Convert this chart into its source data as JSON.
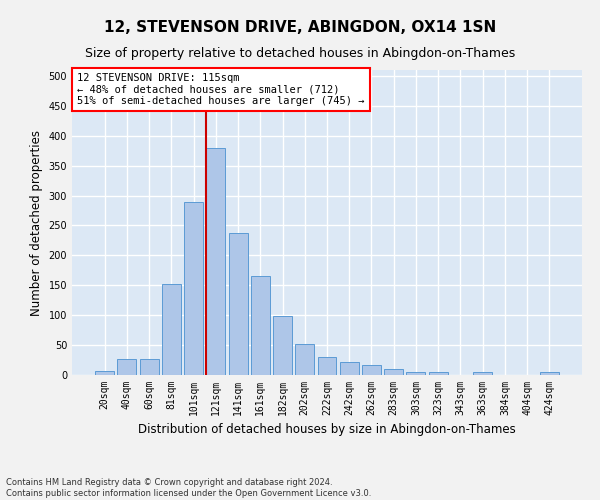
{
  "title": "12, STEVENSON DRIVE, ABINGDON, OX14 1SN",
  "subtitle": "Size of property relative to detached houses in Abingdon-on-Thames",
  "xlabel": "Distribution of detached houses by size in Abingdon-on-Thames",
  "ylabel": "Number of detached properties",
  "bar_labels": [
    "20sqm",
    "40sqm",
    "60sqm",
    "81sqm",
    "101sqm",
    "121sqm",
    "141sqm",
    "161sqm",
    "182sqm",
    "202sqm",
    "222sqm",
    "242sqm",
    "262sqm",
    "283sqm",
    "303sqm",
    "323sqm",
    "343sqm",
    "363sqm",
    "384sqm",
    "404sqm",
    "424sqm"
  ],
  "bar_values": [
    7,
    27,
    27,
    153,
    290,
    380,
    237,
    165,
    98,
    52,
    30,
    22,
    17,
    10,
    5,
    5,
    0,
    5,
    0,
    0,
    5
  ],
  "bar_color": "#aec6e8",
  "bar_edge_color": "#5b9bd5",
  "background_color": "#dce8f5",
  "fig_background_color": "#f2f2f2",
  "grid_color": "#ffffff",
  "vline_color": "#cc0000",
  "vline_x_index": 5,
  "annotation_box_text": "12 STEVENSON DRIVE: 115sqm\n← 48% of detached houses are smaller (712)\n51% of semi-detached houses are larger (745) →",
  "ylim": [
    0,
    510
  ],
  "yticks": [
    0,
    50,
    100,
    150,
    200,
    250,
    300,
    350,
    400,
    450,
    500
  ],
  "footnote": "Contains HM Land Registry data © Crown copyright and database right 2024.\nContains public sector information licensed under the Open Government Licence v3.0.",
  "title_fontsize": 11,
  "subtitle_fontsize": 9,
  "tick_fontsize": 7,
  "ylabel_fontsize": 8.5,
  "xlabel_fontsize": 8.5,
  "annot_fontsize": 7.5,
  "footnote_fontsize": 6
}
